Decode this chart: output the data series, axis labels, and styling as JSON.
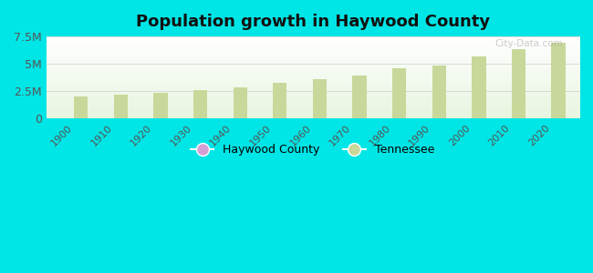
{
  "title": "Population growth in Haywood County",
  "years": [
    1900,
    1910,
    1920,
    1930,
    1940,
    1950,
    1960,
    1970,
    1980,
    1990,
    2000,
    2010,
    2020
  ],
  "tennessee": [
    2020616,
    2184789,
    2337885,
    2616556,
    2845627,
    3291718,
    3567089,
    3923687,
    4591120,
    4877185,
    5689283,
    6346105,
    6910840
  ],
  "haywood_county": [
    37171,
    37622,
    38116,
    34860,
    26355,
    23393,
    23393,
    20318,
    20318,
    19437,
    19797,
    18787,
    17304
  ],
  "bar_color_tennessee": "#c8d89a",
  "bar_color_haywood": "#d4a0d4",
  "background_outer": "#00e5e5",
  "background_plot_bottom": "#e8f5e0",
  "background_plot_top": "#ffffff",
  "ylim": [
    0,
    7500000
  ],
  "yticks": [
    0,
    2500000,
    5000000,
    7500000
  ],
  "ytick_labels": [
    "0",
    "2.5M",
    "5M",
    "7.5M"
  ],
  "bar_width": 0.35,
  "legend_haywood": "Haywood County",
  "legend_tennessee": "Tennessee",
  "watermark": "City-Data.com"
}
